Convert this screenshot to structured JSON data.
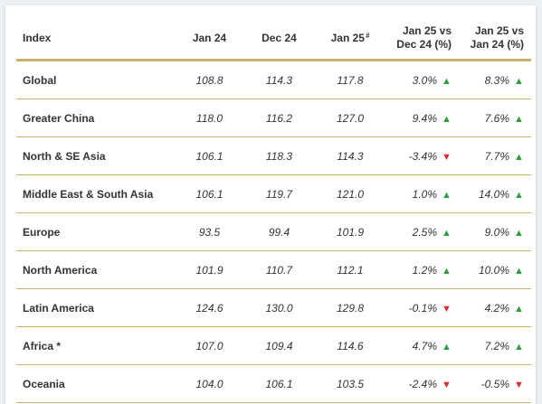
{
  "table": {
    "headers": {
      "index": "Index",
      "jan24": "Jan 24",
      "dec24": "Dec 24",
      "jan25": "Jan 25",
      "jan25_sup": "#",
      "chg_dec_line1": "Jan 25 vs",
      "chg_dec_line2": "Dec 24 (%)",
      "chg_jan_line1": "Jan 25 vs",
      "chg_jan_line2": "Jan 24 (%)"
    },
    "colors": {
      "up": "#2e9e3a",
      "down": "#e22b2b",
      "rule": "#c8b26a"
    },
    "rows": [
      {
        "name": "Global",
        "jan24": "108.8",
        "dec24": "114.3",
        "jan25": "117.8",
        "vs_dec": "3.0%",
        "vs_dec_dir": "up",
        "vs_jan": "8.3%",
        "vs_jan_dir": "up"
      },
      {
        "name": "Greater China",
        "jan24": "118.0",
        "dec24": "116.2",
        "jan25": "127.0",
        "vs_dec": "9.4%",
        "vs_dec_dir": "up",
        "vs_jan": "7.6%",
        "vs_jan_dir": "up"
      },
      {
        "name": "North & SE Asia",
        "jan24": "106.1",
        "dec24": "118.3",
        "jan25": "114.3",
        "vs_dec": "-3.4%",
        "vs_dec_dir": "down",
        "vs_jan": "7.7%",
        "vs_jan_dir": "up"
      },
      {
        "name": "Middle East & South Asia",
        "jan24": "106.1",
        "dec24": "119.7",
        "jan25": "121.0",
        "vs_dec": "1.0%",
        "vs_dec_dir": "up",
        "vs_jan": "14.0%",
        "vs_jan_dir": "up"
      },
      {
        "name": "Europe",
        "jan24": "93.5",
        "dec24": "99.4",
        "jan25": "101.9",
        "vs_dec": "2.5%",
        "vs_dec_dir": "up",
        "vs_jan": "9.0%",
        "vs_jan_dir": "up"
      },
      {
        "name": "North America",
        "jan24": "101.9",
        "dec24": "110.7",
        "jan25": "112.1",
        "vs_dec": "1.2%",
        "vs_dec_dir": "up",
        "vs_jan": "10.0%",
        "vs_jan_dir": "up"
      },
      {
        "name": "Latin America",
        "jan24": "124.6",
        "dec24": "130.0",
        "jan25": "129.8",
        "vs_dec": "-0.1%",
        "vs_dec_dir": "down",
        "vs_jan": "4.2%",
        "vs_jan_dir": "up"
      },
      {
        "name": "Africa *",
        "jan24": "107.0",
        "dec24": "109.4",
        "jan25": "114.6",
        "vs_dec": "4.7%",
        "vs_dec_dir": "up",
        "vs_jan": "7.2%",
        "vs_jan_dir": "up"
      },
      {
        "name": "Oceania",
        "jan24": "104.0",
        "dec24": "106.1",
        "jan25": "103.5",
        "vs_dec": "-2.4%",
        "vs_dec_dir": "down",
        "vs_jan": "-0.5%",
        "vs_jan_dir": "down"
      }
    ]
  }
}
